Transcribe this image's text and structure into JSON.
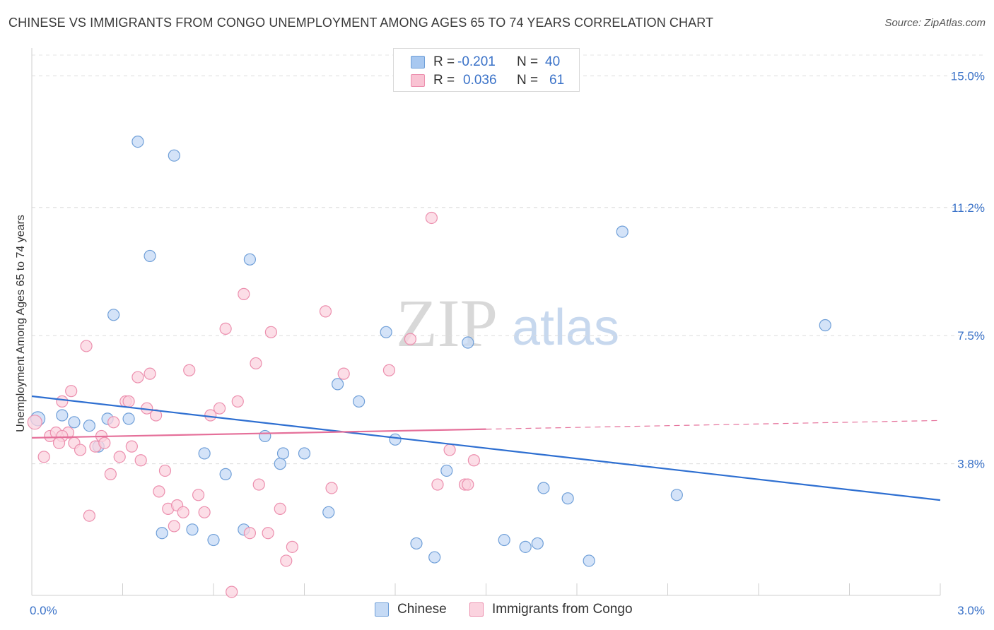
{
  "title": "CHINESE VS IMMIGRANTS FROM CONGO UNEMPLOYMENT AMONG AGES 65 TO 74 YEARS CORRELATION CHART",
  "source": "Source: ZipAtlas.com",
  "watermark": {
    "zip": "ZIP",
    "atlas": "atlas"
  },
  "legend_top": [
    {
      "r_label": "R =",
      "r_value": "-0.201",
      "n_label": "N =",
      "n_value": "40",
      "color": "#a8c8f0",
      "border": "#6f9fd8"
    },
    {
      "r_label": "R =",
      "r_value": "0.036",
      "n_label": "N =",
      "n_value": "61",
      "color": "#f9c3d3",
      "border": "#ec8fae"
    }
  ],
  "legend_bottom": [
    {
      "label": "Chinese",
      "color": "#c5daf5",
      "border": "#6f9fd8"
    },
    {
      "label": "Immigrants from Congo",
      "color": "#fbd3df",
      "border": "#ec8fae"
    }
  ],
  "chart_data": {
    "type": "scatter",
    "title": "CHINESE VS IMMIGRANTS FROM CONGO UNEMPLOYMENT AMONG AGES 65 TO 74 YEARS CORRELATION CHART",
    "xlabel": "",
    "ylabel": "Unemployment Among Ages 65 to 74 years",
    "xlim": [
      0,
      3.0
    ],
    "ylim": [
      0,
      15.6
    ],
    "x_tick_labels": [
      {
        "value": 0.0,
        "label": "0.0%"
      },
      {
        "value": 3.0,
        "label": "3.0%"
      }
    ],
    "y_tick_labels": [
      {
        "value": 3.8,
        "label": "3.8%"
      },
      {
        "value": 7.5,
        "label": "7.5%"
      },
      {
        "value": 11.2,
        "label": "11.2%"
      },
      {
        "value": 15.0,
        "label": "15.0%"
      }
    ],
    "grid": "horizontal dashed",
    "series": [
      {
        "name": "Chinese",
        "color": "#6f9fd8",
        "fill": "#c5daf5",
        "points": [
          [
            0.02,
            5.1
          ],
          [
            0.1,
            5.2
          ],
          [
            0.14,
            5.0
          ],
          [
            0.19,
            4.9
          ],
          [
            0.22,
            4.3
          ],
          [
            0.27,
            8.1
          ],
          [
            0.32,
            5.1
          ],
          [
            0.35,
            13.1
          ],
          [
            0.39,
            9.8
          ],
          [
            0.43,
            1.8
          ],
          [
            0.47,
            12.7
          ],
          [
            0.53,
            1.9
          ],
          [
            0.57,
            4.1
          ],
          [
            0.6,
            1.6
          ],
          [
            0.64,
            3.5
          ],
          [
            0.7,
            1.9
          ],
          [
            0.72,
            9.7
          ],
          [
            0.77,
            4.6
          ],
          [
            0.82,
            3.8
          ],
          [
            0.83,
            4.1
          ],
          [
            0.9,
            4.1
          ],
          [
            0.98,
            2.4
          ],
          [
            1.01,
            6.1
          ],
          [
            1.08,
            5.6
          ],
          [
            1.17,
            7.6
          ],
          [
            1.2,
            4.5
          ],
          [
            1.27,
            1.5
          ],
          [
            1.33,
            1.1
          ],
          [
            1.37,
            3.6
          ],
          [
            1.44,
            7.3
          ],
          [
            1.56,
            1.6
          ],
          [
            1.63,
            1.4
          ],
          [
            1.67,
            1.5
          ],
          [
            1.69,
            3.1
          ],
          [
            1.77,
            2.8
          ],
          [
            1.84,
            1.0
          ],
          [
            1.95,
            10.5
          ],
          [
            2.13,
            2.9
          ],
          [
            2.62,
            7.8
          ],
          [
            0.25,
            5.1
          ]
        ]
      },
      {
        "name": "Immigrants from Congo",
        "color": "#ec8fae",
        "fill": "#fbd3df",
        "points": [
          [
            0.01,
            5.0
          ],
          [
            0.04,
            4.0
          ],
          [
            0.06,
            4.6
          ],
          [
            0.08,
            4.7
          ],
          [
            0.1,
            5.6
          ],
          [
            0.12,
            4.7
          ],
          [
            0.13,
            5.9
          ],
          [
            0.14,
            4.4
          ],
          [
            0.16,
            4.2
          ],
          [
            0.18,
            7.2
          ],
          [
            0.19,
            2.3
          ],
          [
            0.21,
            4.3
          ],
          [
            0.23,
            4.6
          ],
          [
            0.24,
            4.4
          ],
          [
            0.26,
            3.5
          ],
          [
            0.27,
            5.0
          ],
          [
            0.29,
            4.0
          ],
          [
            0.31,
            5.6
          ],
          [
            0.32,
            5.6
          ],
          [
            0.33,
            4.3
          ],
          [
            0.35,
            6.3
          ],
          [
            0.36,
            3.9
          ],
          [
            0.38,
            5.4
          ],
          [
            0.39,
            6.4
          ],
          [
            0.41,
            5.2
          ],
          [
            0.42,
            3.0
          ],
          [
            0.44,
            3.6
          ],
          [
            0.45,
            2.5
          ],
          [
            0.47,
            2.0
          ],
          [
            0.48,
            2.6
          ],
          [
            0.5,
            2.4
          ],
          [
            0.52,
            6.5
          ],
          [
            0.55,
            2.9
          ],
          [
            0.57,
            2.4
          ],
          [
            0.59,
            5.2
          ],
          [
            0.62,
            5.4
          ],
          [
            0.64,
            7.7
          ],
          [
            0.66,
            0.1
          ],
          [
            0.68,
            5.6
          ],
          [
            0.7,
            8.7
          ],
          [
            0.72,
            1.8
          ],
          [
            0.74,
            6.7
          ],
          [
            0.75,
            3.2
          ],
          [
            0.78,
            1.8
          ],
          [
            0.79,
            7.6
          ],
          [
            0.82,
            2.5
          ],
          [
            0.84,
            1.0
          ],
          [
            0.86,
            1.4
          ],
          [
            0.97,
            8.2
          ],
          [
            0.99,
            3.1
          ],
          [
            1.03,
            6.4
          ],
          [
            1.18,
            6.5
          ],
          [
            1.25,
            7.4
          ],
          [
            1.32,
            10.9
          ],
          [
            1.34,
            3.2
          ],
          [
            1.38,
            4.2
          ],
          [
            1.43,
            3.2
          ],
          [
            1.44,
            3.2
          ],
          [
            1.46,
            3.9
          ],
          [
            0.1,
            4.6
          ],
          [
            0.09,
            4.4
          ]
        ]
      }
    ],
    "trend_lines": [
      {
        "series": "Chinese",
        "x": [
          0.0,
          3.0
        ],
        "y": [
          5.75,
          2.75
        ],
        "style": "solid"
      },
      {
        "series": "Immigrants from Congo",
        "x": [
          0.0,
          1.5
        ],
        "y": [
          4.55,
          4.8
        ],
        "style": "solid"
      },
      {
        "series": "Immigrants from Congo",
        "x": [
          1.5,
          3.0
        ],
        "y": [
          4.8,
          5.05
        ],
        "style": "dashed"
      }
    ]
  }
}
